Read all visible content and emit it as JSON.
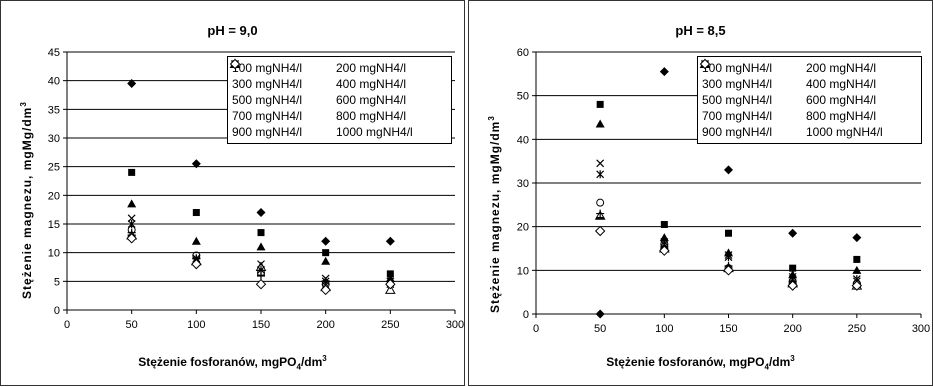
{
  "chart_data": [
    {
      "type": "scatter",
      "title": "pH = 9,0",
      "ylabel_parts": [
        "Stężenie magnezu, mgMg/dm",
        "3"
      ],
      "xlabel_parts": [
        "Stężenie fosforanów, mgPO",
        "4",
        "/dm",
        "3"
      ],
      "xlim": [
        0,
        300
      ],
      "ylim": [
        0,
        45
      ],
      "x_ticks": [
        "0",
        "50",
        "100",
        "150",
        "200",
        "250",
        "300"
      ],
      "y_ticks": [
        "0",
        "5",
        "10",
        "15",
        "20",
        "25",
        "30",
        "35",
        "40",
        "45"
      ],
      "grid": "horizontal",
      "legend_position": "top-right",
      "x": [
        50,
        100,
        150,
        200,
        250
      ],
      "series": [
        {
          "name": "100 mgNH4/l",
          "marker": "diamond-filled",
          "values": [
            39.5,
            25.5,
            17,
            12,
            12
          ]
        },
        {
          "name": "200 mgNH4/l",
          "marker": "square-filled",
          "values": [
            24,
            17,
            13.5,
            10,
            6.3
          ]
        },
        {
          "name": "300 mgNH4/l",
          "marker": "triangle-filled",
          "values": [
            18.5,
            12,
            11,
            8.5,
            5.5
          ]
        },
        {
          "name": "400 mgNH4/l",
          "marker": "x",
          "values": [
            16,
            8.5,
            8,
            5.5,
            5
          ]
        },
        {
          "name": "500 mgNH4/l",
          "marker": "asterisk",
          "values": [
            15,
            9,
            7,
            5,
            4.5
          ]
        },
        {
          "name": "600 mgNH4/l",
          "marker": "circle-open",
          "values": [
            14,
            9.5,
            6.5,
            4.5,
            4.5
          ]
        },
        {
          "name": "700 mgNH4/l",
          "marker": "plus",
          "values": [
            13.5,
            9,
            6,
            5,
            4.5
          ]
        },
        {
          "name": "800 mgNH4/l",
          "marker": "triangle-open",
          "values": [
            13,
            8.5,
            7.5,
            4,
            3.5
          ]
        },
        {
          "name": "900 mgNH4/l",
          "marker": "dash",
          "values": [
            13,
            9,
            6,
            5,
            4.5
          ]
        },
        {
          "name": "1000 mgNH4/l",
          "marker": "diamond-open",
          "values": [
            12.5,
            8,
            4.5,
            3.5,
            4.5
          ]
        }
      ]
    },
    {
      "type": "scatter",
      "title": "pH = 8,5",
      "ylabel_parts": [
        "Stężenie magnezu, mgMg/dm",
        "3"
      ],
      "xlabel_parts": [
        "Stężenie fosforanów, mgPO",
        "4",
        "/dm",
        "3"
      ],
      "xlim": [
        0,
        300
      ],
      "ylim": [
        0,
        60
      ],
      "x_ticks": [
        "0",
        "50",
        "100",
        "150",
        "200",
        "250",
        "300"
      ],
      "y_ticks": [
        "0",
        "10",
        "20",
        "30",
        "40",
        "50",
        "60"
      ],
      "grid": "horizontal",
      "legend_position": "top-right",
      "x": [
        50,
        100,
        150,
        200,
        250
      ],
      "series": [
        {
          "name": "100 mgNH4/l",
          "marker": "diamond-filled",
          "values": [
            0,
            55.5,
            33,
            18.5,
            17.5
          ]
        },
        {
          "name": "200 mgNH4/l",
          "marker": "square-filled",
          "values": [
            48,
            20.5,
            18.5,
            10.5,
            12.5
          ]
        },
        {
          "name": "300 mgNH4/l",
          "marker": "triangle-filled",
          "values": [
            43.5,
            17.5,
            14,
            9,
            10
          ]
        },
        {
          "name": "400 mgNH4/l",
          "marker": "x",
          "values": [
            34.5,
            16,
            13.5,
            8.5,
            7.5
          ]
        },
        {
          "name": "500 mgNH4/l",
          "marker": "asterisk",
          "values": [
            32,
            16.5,
            13,
            8,
            8
          ]
        },
        {
          "name": "600 mgNH4/l",
          "marker": "circle-open",
          "values": [
            25.5,
            16,
            10.5,
            7.5,
            7
          ]
        },
        {
          "name": "700 mgNH4/l",
          "marker": "plus",
          "values": [
            23,
            15.5,
            11,
            7.5,
            7
          ]
        },
        {
          "name": "800 mgNH4/l",
          "marker": "triangle-open",
          "values": [
            22.5,
            15,
            10.5,
            7,
            6.5
          ]
        },
        {
          "name": "900 mgNH4/l",
          "marker": "dash",
          "values": [
            22,
            15,
            10,
            7,
            6.5
          ]
        },
        {
          "name": "1000 mgNH4/l",
          "marker": "diamond-open",
          "values": [
            19,
            14.5,
            10,
            6.5,
            6.5
          ]
        }
      ]
    }
  ]
}
